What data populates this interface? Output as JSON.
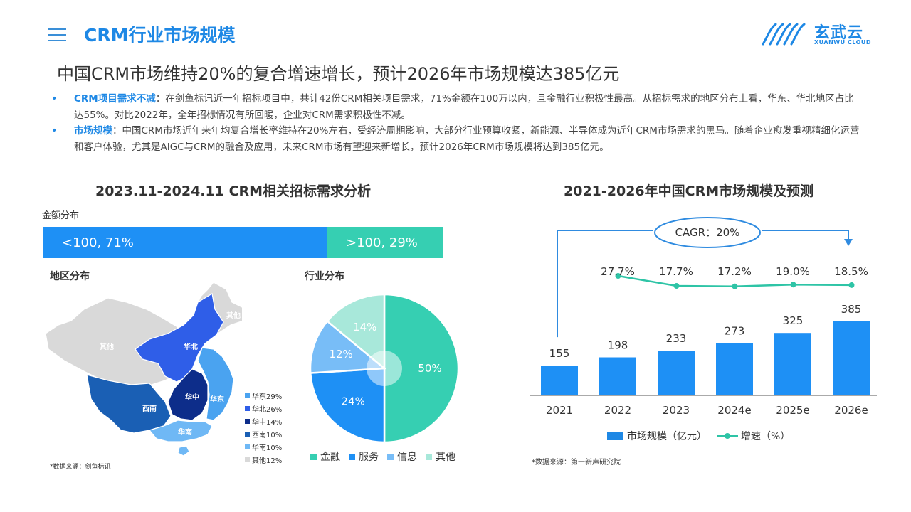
{
  "header": {
    "section_title": "CRM行业市场规模",
    "logo_text": "玄武云",
    "logo_sub": "XUANWU CLOUD"
  },
  "headline": "中国CRM市场维持20%的复合增速增长，预计2026年市场规模达385亿元",
  "bullets": [
    {
      "key": "CRM项目需求不减",
      "text": "：在剑鱼标讯近一年招标项目中，共计42份CRM相关项目需求，71%金额在100万以内，且金融行业积极性最高。从招标需求的地区分布上看，华东、华北地区占比达55%。对比2022年，全年招标情况有所回暖，企业对CRM需求积极性不减。"
    },
    {
      "key": "市场规模",
      "text": "：中国CRM市场近年来年均复合增长率维持在20%左右，受经济周期影响，大部分行业预算收紧，新能源、半导体成为近年CRM市场需求的黑马。随着企业愈发重视精细化运营和客户体验，尤其是AIGC与CRM的融合及应用，未来CRM市场有望迎来新增长，预计2026年CRM市场规模将达到385亿元。"
    }
  ],
  "left": {
    "title": "2023.11-2024.11 CRM相关招标需求分析",
    "amount_label": "金额分布",
    "region_label": "地区分布",
    "industry_label": "行业分布",
    "source": "*数据来源：剑鱼标讯"
  },
  "right": {
    "title": "2021-2026年中国CRM市场规模及预测",
    "cagr": "CAGR：20%",
    "legend_bar": "市场规模（亿元）",
    "legend_line": "增速（%）",
    "source": "*数据来源：第一新声研究院"
  },
  "colors": {
    "accent": "#1e88e5",
    "teal": "#36cfb2",
    "growth_line": "#2ec4a6"
  },
  "chart_data": [
    {
      "type": "bar",
      "name": "amount_distribution",
      "orientation": "horizontal-stacked",
      "segments": [
        {
          "label": "<100, 71%",
          "value": 71,
          "color": "#1e90f5"
        },
        {
          "label": ">100, 29%",
          "value": 29,
          "color": "#36cfb2"
        }
      ]
    },
    {
      "type": "heatmap",
      "name": "region_distribution",
      "regions": [
        {
          "label": "华东",
          "legend": "华东29%",
          "value": 29,
          "color": "#4aa3f0"
        },
        {
          "label": "华北",
          "legend": "华北26%",
          "value": 26,
          "color": "#2f5ee8"
        },
        {
          "label": "华中",
          "legend": "华中14%",
          "value": 14,
          "color": "#0d2d8a"
        },
        {
          "label": "西南",
          "legend": "西南10%",
          "value": 10,
          "color": "#1a5fb4"
        },
        {
          "label": "华南",
          "legend": "华南10%",
          "value": 10,
          "color": "#6fb8f5"
        },
        {
          "label": "其他",
          "legend": "其他12%",
          "value": 12,
          "color": "#d9d9d9"
        }
      ]
    },
    {
      "type": "pie",
      "name": "industry_distribution",
      "slices": [
        {
          "label": "金融",
          "value": 50,
          "text": "50%",
          "color": "#36cfb2"
        },
        {
          "label": "服务",
          "value": 24,
          "text": "24%",
          "color": "#1e90f5"
        },
        {
          "label": "信息",
          "value": 12,
          "text": "12%",
          "color": "#78bdf7"
        },
        {
          "label": "其他",
          "value": 14,
          "text": "14%",
          "color": "#a8e8da"
        }
      ]
    },
    {
      "type": "bar",
      "name": "market_size",
      "categories": [
        "2021",
        "2022",
        "2023",
        "2024e",
        "2025e",
        "2026e"
      ],
      "series": [
        {
          "name": "市场规模（亿元）",
          "type": "bar",
          "values": [
            155,
            198,
            233,
            273,
            325,
            385
          ],
          "color": "#1e90f5"
        },
        {
          "name": "增速（%）",
          "type": "line",
          "values": [
            null,
            27.7,
            17.7,
            17.2,
            19.0,
            18.5
          ],
          "labels": [
            "",
            "27.7%",
            "17.7%",
            "17.2%",
            "19.0%",
            "18.5%"
          ],
          "color": "#2ec4a6"
        }
      ]
    }
  ]
}
